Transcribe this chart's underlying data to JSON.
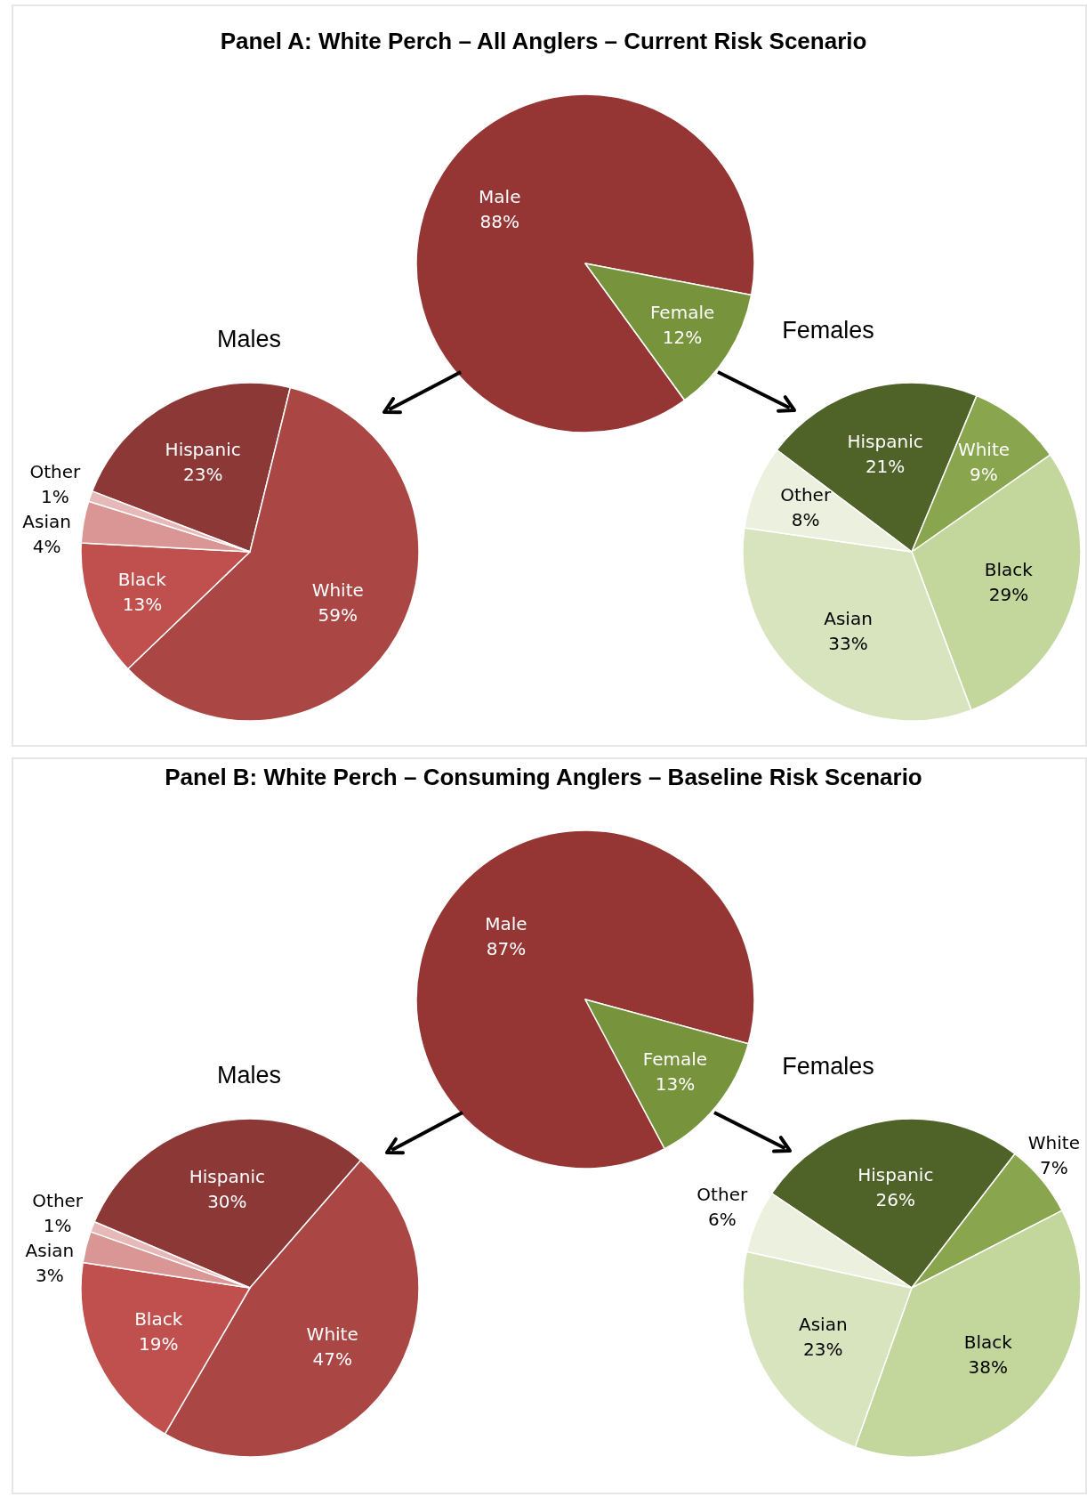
{
  "chart_data": [
    {
      "type": "pie",
      "title": "Panel A: White Perch – All Anglers – Current Risk Scenario",
      "categories": [
        "Male",
        "Female"
      ],
      "values": [
        88,
        12
      ],
      "value_labels": [
        "88%",
        "12%"
      ],
      "colors": [
        "#963634",
        "#77933c"
      ]
    },
    {
      "type": "pie",
      "title": "Males",
      "categories": [
        "Hispanic",
        "White",
        "Black",
        "Asian",
        "Other"
      ],
      "values": [
        23,
        59,
        13,
        4,
        1
      ],
      "value_labels": [
        "23%",
        "59%",
        "13%",
        "4%",
        "1%"
      ],
      "colors": [
        "#8c3836",
        "#aa4643",
        "#c0504d",
        "#d99694",
        "#e6b9b8"
      ]
    },
    {
      "type": "pie",
      "title": "Females",
      "categories": [
        "Hispanic",
        "White",
        "Black",
        "Asian",
        "Other"
      ],
      "values": [
        21,
        9,
        29,
        33,
        8
      ],
      "value_labels": [
        "21%",
        "9%",
        "29%",
        "33%",
        "8%"
      ],
      "colors": [
        "#4f6228",
        "#89a54e",
        "#c3d69b",
        "#d7e4bd",
        "#ebf1de"
      ]
    },
    {
      "type": "pie",
      "title": "Panel B: White Perch – Consuming Anglers – Baseline Risk Scenario",
      "categories": [
        "Male",
        "Female"
      ],
      "values": [
        87,
        13
      ],
      "value_labels": [
        "87%",
        "13%"
      ],
      "colors": [
        "#963634",
        "#77933c"
      ]
    },
    {
      "type": "pie",
      "title": "Males",
      "categories": [
        "Hispanic",
        "White",
        "Black",
        "Asian",
        "Other"
      ],
      "values": [
        30,
        47,
        19,
        3,
        1
      ],
      "value_labels": [
        "30%",
        "47%",
        "19%",
        "3%",
        "1%"
      ],
      "colors": [
        "#8c3836",
        "#aa4643",
        "#c0504d",
        "#d99694",
        "#e6b9b8"
      ]
    },
    {
      "type": "pie",
      "title": "Females",
      "categories": [
        "Hispanic",
        "White",
        "Black",
        "Asian",
        "Other"
      ],
      "values": [
        26,
        7,
        38,
        23,
        6
      ],
      "value_labels": [
        "26%",
        "7%",
        "38%",
        "23%",
        "6%"
      ],
      "colors": [
        "#4f6228",
        "#89a54e",
        "#c3d69b",
        "#d7e4bd",
        "#ebf1de"
      ]
    }
  ]
}
